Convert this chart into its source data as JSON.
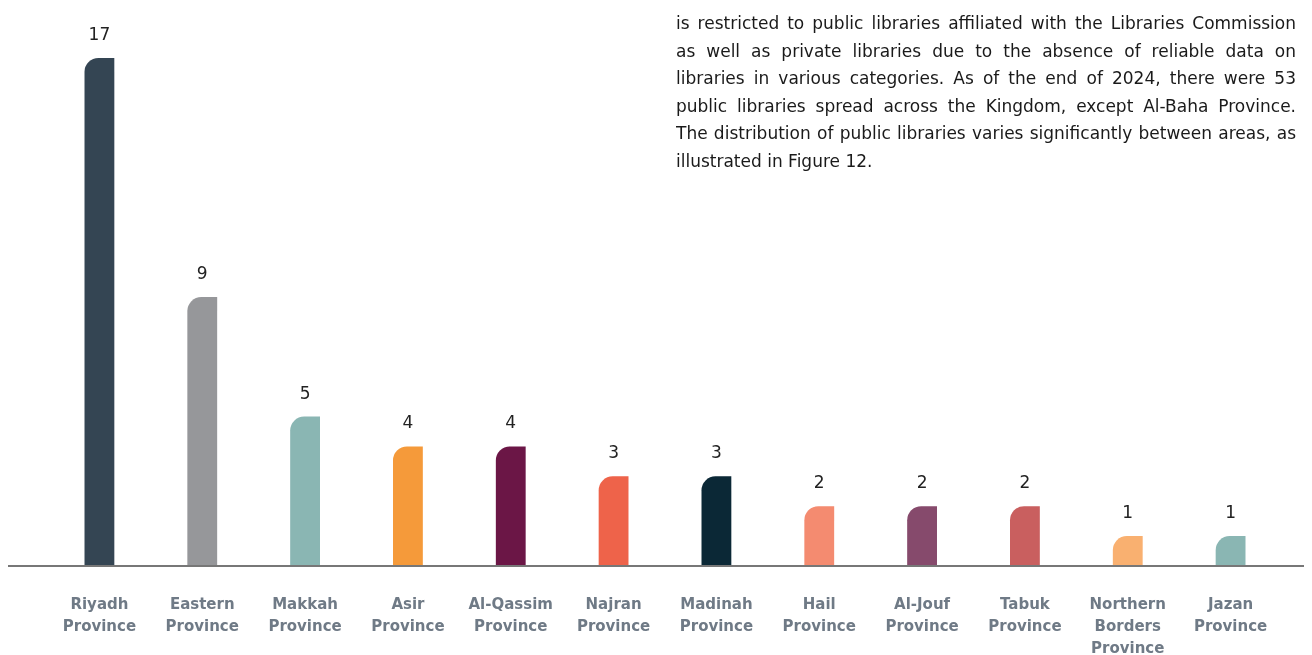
{
  "chart_data": {
    "type": "bar",
    "categories": [
      "Riyadh Province",
      "Eastern Province",
      "Makkah Province",
      "Asir Province",
      "Al-Qassim Province",
      "Najran Province",
      "Madinah Province",
      "Hail Province",
      "Al-Jouf Province",
      "Tabuk Province",
      "Northern Borders Province",
      "Jazan Province"
    ],
    "values": [
      17,
      9,
      5,
      4,
      4,
      3,
      3,
      2,
      2,
      2,
      1,
      1
    ],
    "colors": [
      "#344553",
      "#96979a",
      "#8ab6b3",
      "#f59a3a",
      "#6b1646",
      "#ee634a",
      "#0b2836",
      "#f48b70",
      "#864a6c",
      "#c95f5f",
      "#f9b070",
      "#8ab6b3"
    ],
    "data_labels": true,
    "annotations": [
      "is restricted to public libraries affiliated with the Libraries Commission as well as private libraries due to the absence of reliable data on libraries in various categories. As of the end of 2024, there were 53 public libraries spread across the Kingdom, except Al-Baha Province. The distribution of public libraries varies significantly between areas, as illustrated in Figure 12."
    ]
  }
}
